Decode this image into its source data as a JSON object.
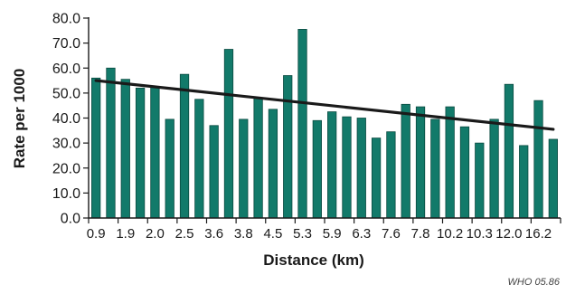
{
  "chart_data": {
    "type": "bar",
    "title": "",
    "xlabel": "Distance (km)",
    "ylabel": "Rate per 1000",
    "ylim": [
      0,
      80
    ],
    "yticks": [
      "0.0",
      "10.0",
      "20.0",
      "30.0",
      "40.0",
      "50.0",
      "60.0",
      "70.0",
      "80.0"
    ],
    "x_tick_labels": [
      "0.9",
      "1.9",
      "2.0",
      "2.5",
      "3.6",
      "3.8",
      "4.5",
      "5.3",
      "5.9",
      "6.3",
      "7.6",
      "7.8",
      "10.2",
      "10.3",
      "12.0",
      "16.2"
    ],
    "values": [
      56.0,
      60.0,
      55.5,
      52.0,
      52.5,
      39.5,
      57.5,
      47.5,
      37.0,
      67.5,
      39.5,
      48.0,
      43.5,
      57.0,
      75.5,
      39.0,
      42.5,
      40.5,
      40.0,
      32.0,
      34.5,
      45.5,
      44.5,
      39.5,
      44.5,
      36.5,
      30.0,
      39.5,
      53.5,
      29.0,
      47.0,
      31.5
    ],
    "trendline": {
      "start": 55.0,
      "end": 35.5
    },
    "grid": false,
    "legend": "none",
    "colors": {
      "bar": "#127a6a",
      "bar_edge": "#0a4a40",
      "trend": "#1a1a1a",
      "axis": "#1a1a1a"
    }
  },
  "footer": {
    "credit": "WHO 05.86"
  }
}
